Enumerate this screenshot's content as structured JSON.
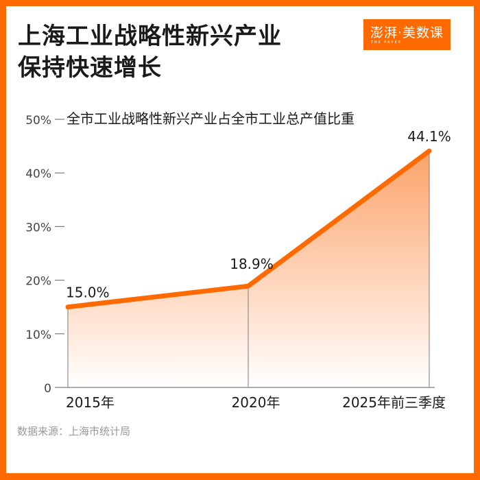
{
  "header": {
    "title_line1": "上海工业战略性新兴产业",
    "title_line2": "保持快速增长",
    "logo_text": "澎湃·美数课",
    "logo_subtext": "THE PAPER"
  },
  "colors": {
    "brand": "#ff6a00",
    "line": "#ff6a00",
    "area_top": "#fca36a",
    "area_bottom": "#ffffff",
    "axis": "#7a7a7a",
    "text": "#1a1a1a",
    "source_text": "#999999"
  },
  "footer": {
    "source": "数据来源：上海市统计局"
  },
  "chart_data": {
    "type": "area",
    "title": "全市工业战略性新兴产业占全市工业总产值比重",
    "xlabel": "",
    "ylabel": "",
    "categories": [
      "2015年",
      "2020年",
      "2025年前三季度"
    ],
    "series": [
      {
        "name": "全市工业战略性新兴产业占全市工业总产值比重",
        "values": [
          15.0,
          18.9,
          44.1
        ]
      }
    ],
    "data_labels": [
      "15.0%",
      "18.9%",
      "44.1%"
    ],
    "yticks": [
      "0",
      "10%",
      "20%",
      "30%",
      "40%",
      "50%"
    ],
    "ylim": [
      0,
      50
    ],
    "grid": false,
    "legend": "none"
  }
}
